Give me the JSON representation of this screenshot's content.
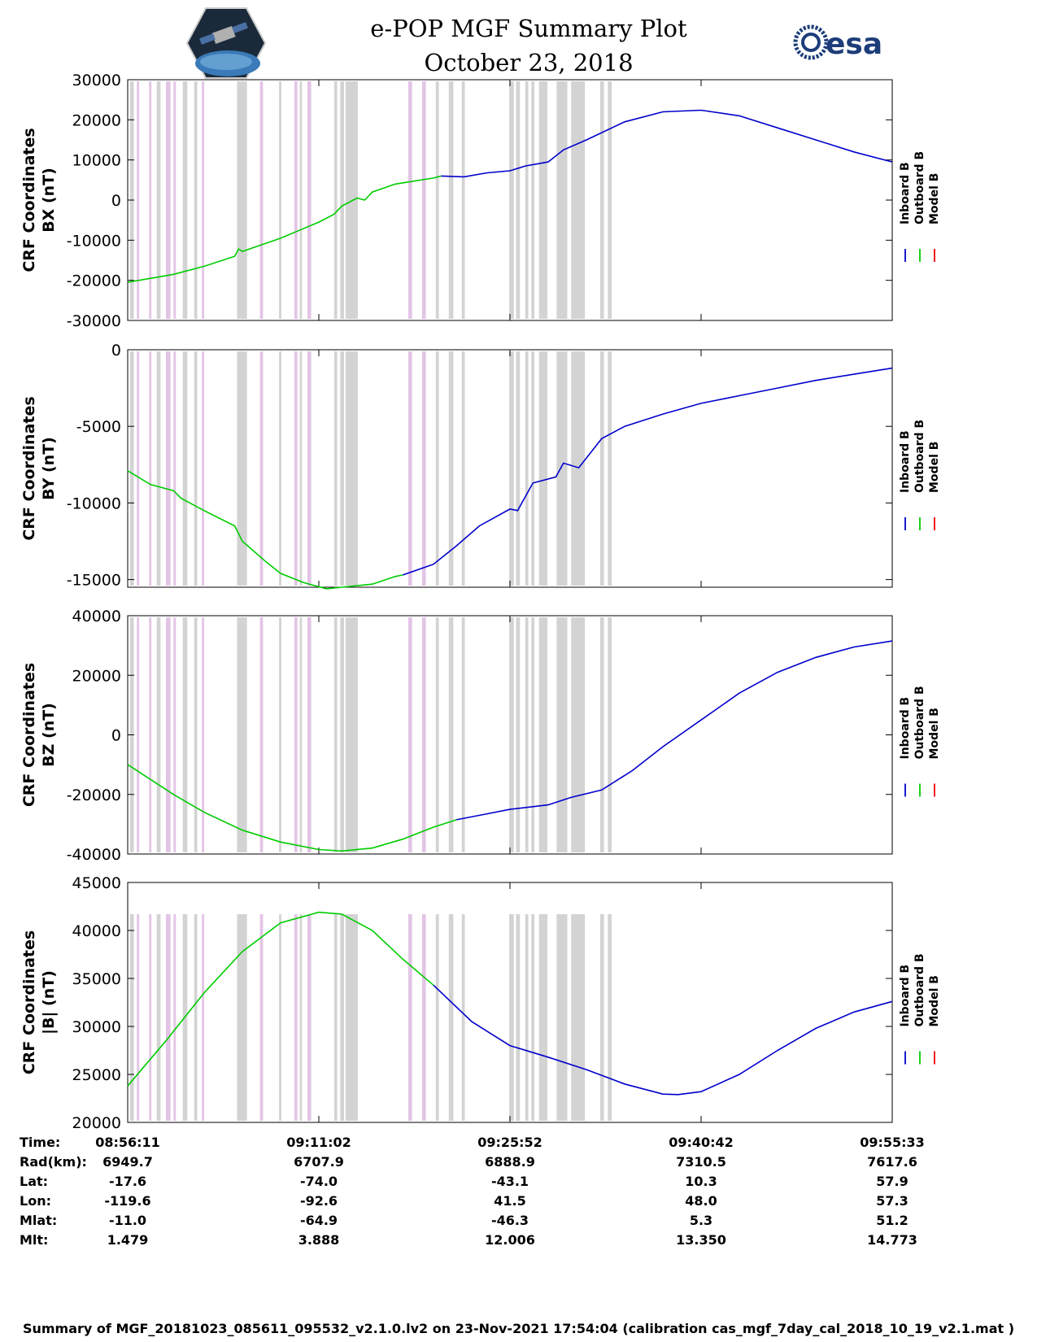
{
  "title": {
    "line1": "e-POP MGF Summary Plot",
    "line2": "October 23, 2018"
  },
  "logos": {
    "left": "cassiope-mission-logo",
    "right_text": "esa"
  },
  "colors": {
    "inboard": "#0000cc",
    "outboard": "#00cc00",
    "model": "#ee0000",
    "shade_gray": "#d3d3d3",
    "shade_pink": "#e3c4e6"
  },
  "legend": [
    "Inboard B",
    "Outboard B",
    "Model B"
  ],
  "chart_data": [
    {
      "type": "line",
      "ylabel_line1": "CRF Coordinates",
      "ylabel_line2": "BX (nT)",
      "ylim": [
        -30000,
        30000
      ],
      "yticks": [
        -30000,
        -20000,
        -10000,
        0,
        10000,
        20000,
        30000
      ],
      "xlim": [
        0,
        1
      ]
    },
    {
      "type": "line",
      "ylabel_line1": "CRF Coordinates",
      "ylabel_line2": "BY (nT)",
      "ylim": [
        -15500,
        0
      ],
      "yticks": [
        -15000,
        -10000,
        -5000,
        0
      ],
      "xlim": [
        0,
        1
      ]
    },
    {
      "type": "line",
      "ylabel_line1": "CRF Coordinates",
      "ylabel_line2": "BZ (nT)",
      "ylim": [
        -40000,
        40000
      ],
      "yticks": [
        -40000,
        -20000,
        0,
        20000,
        40000
      ],
      "xlim": [
        0,
        1
      ]
    },
    {
      "type": "line",
      "ylabel_line1": "CRF Coordinates",
      "ylabel_line2": "|B| (nT)",
      "ylim": [
        20000,
        45000
      ],
      "yticks": [
        20000,
        25000,
        30000,
        35000,
        40000,
        45000
      ],
      "xlim": [
        0,
        1
      ]
    }
  ],
  "series_points": {
    "bx": {
      "outboard": [
        [
          0,
          -20500
        ],
        [
          0.03,
          -19500
        ],
        [
          0.06,
          -18500
        ],
        [
          0.1,
          -16500
        ],
        [
          0.14,
          -14000
        ],
        [
          0.145,
          -12200
        ],
        [
          0.15,
          -12800
        ],
        [
          0.2,
          -9500
        ],
        [
          0.25,
          -5500
        ],
        [
          0.27,
          -3500
        ],
        [
          0.28,
          -1500
        ],
        [
          0.3,
          500
        ],
        [
          0.31,
          0
        ],
        [
          0.32,
          2000
        ],
        [
          0.35,
          4000
        ],
        [
          0.4,
          5500
        ],
        [
          0.41,
          6000
        ]
      ],
      "inboard": [
        [
          0.41,
          6000
        ],
        [
          0.44,
          5800
        ],
        [
          0.47,
          6800
        ],
        [
          0.5,
          7300
        ],
        [
          0.52,
          8500
        ],
        [
          0.55,
          9500
        ],
        [
          0.57,
          12500
        ],
        [
          0.6,
          15000
        ],
        [
          0.65,
          19500
        ],
        [
          0.7,
          22000
        ],
        [
          0.75,
          22400
        ],
        [
          0.8,
          21000
        ],
        [
          0.85,
          18000
        ],
        [
          0.9,
          15000
        ],
        [
          0.95,
          12000
        ],
        [
          1,
          9500
        ]
      ]
    },
    "by": {
      "outboard": [
        [
          0,
          -7900
        ],
        [
          0.03,
          -8800
        ],
        [
          0.06,
          -9200
        ],
        [
          0.07,
          -9700
        ],
        [
          0.1,
          -10500
        ],
        [
          0.14,
          -11500
        ],
        [
          0.15,
          -12500
        ],
        [
          0.18,
          -13800
        ],
        [
          0.2,
          -14600
        ],
        [
          0.23,
          -15200
        ],
        [
          0.26,
          -15600
        ],
        [
          0.28,
          -15500
        ],
        [
          0.3,
          -15400
        ],
        [
          0.32,
          -15300
        ],
        [
          0.35,
          -14800
        ],
        [
          0.36,
          -14700
        ]
      ],
      "inboard": [
        [
          0.36,
          -14700
        ],
        [
          0.4,
          -14000
        ],
        [
          0.43,
          -12800
        ],
        [
          0.46,
          -11500
        ],
        [
          0.5,
          -10400
        ],
        [
          0.51,
          -10500
        ],
        [
          0.53,
          -8700
        ],
        [
          0.56,
          -8300
        ],
        [
          0.57,
          -7400
        ],
        [
          0.59,
          -7700
        ],
        [
          0.62,
          -5800
        ],
        [
          0.65,
          -5000
        ],
        [
          0.7,
          -4200
        ],
        [
          0.75,
          -3500
        ],
        [
          0.8,
          -3000
        ],
        [
          0.85,
          -2500
        ],
        [
          0.9,
          -2000
        ],
        [
          0.95,
          -1600
        ],
        [
          1,
          -1200
        ]
      ]
    },
    "bz": {
      "outboard": [
        [
          0,
          -10000
        ],
        [
          0.03,
          -15000
        ],
        [
          0.06,
          -20000
        ],
        [
          0.1,
          -26000
        ],
        [
          0.15,
          -32000
        ],
        [
          0.2,
          -36000
        ],
        [
          0.25,
          -38500
        ],
        [
          0.28,
          -39000
        ],
        [
          0.32,
          -38000
        ],
        [
          0.36,
          -35000
        ],
        [
          0.4,
          -31000
        ],
        [
          0.43,
          -28500
        ]
      ],
      "inboard": [
        [
          0.43,
          -28500
        ],
        [
          0.47,
          -26500
        ],
        [
          0.5,
          -25000
        ],
        [
          0.55,
          -23500
        ],
        [
          0.58,
          -21000
        ],
        [
          0.62,
          -18500
        ],
        [
          0.66,
          -12000
        ],
        [
          0.7,
          -4000
        ],
        [
          0.75,
          5000
        ],
        [
          0.8,
          14000
        ],
        [
          0.85,
          21000
        ],
        [
          0.9,
          26000
        ],
        [
          0.95,
          29500
        ],
        [
          1,
          31500
        ]
      ]
    },
    "bmag": {
      "outboard": [
        [
          0,
          23800
        ],
        [
          0.05,
          28500
        ],
        [
          0.1,
          33500
        ],
        [
          0.15,
          37800
        ],
        [
          0.2,
          40800
        ],
        [
          0.25,
          41900
        ],
        [
          0.28,
          41700
        ],
        [
          0.32,
          40000
        ],
        [
          0.36,
          37000
        ],
        [
          0.4,
          34300
        ]
      ],
      "inboard": [
        [
          0.4,
          34300
        ],
        [
          0.45,
          30500
        ],
        [
          0.5,
          28000
        ],
        [
          0.55,
          26800
        ],
        [
          0.6,
          25500
        ],
        [
          0.65,
          24000
        ],
        [
          0.7,
          22950
        ],
        [
          0.72,
          22900
        ],
        [
          0.75,
          23200
        ],
        [
          0.8,
          25000
        ],
        [
          0.85,
          27500
        ],
        [
          0.9,
          29800
        ],
        [
          0.95,
          31500
        ],
        [
          1,
          32600
        ]
      ]
    }
  },
  "shading": {
    "gray": [
      [
        0.003,
        0.008
      ],
      [
        0.038,
        0.043
      ],
      [
        0.072,
        0.078
      ],
      [
        0.087,
        0.091
      ],
      [
        0.143,
        0.156
      ],
      [
        0.198,
        0.201
      ],
      [
        0.225,
        0.228
      ],
      [
        0.27,
        0.274
      ],
      [
        0.278,
        0.283
      ],
      [
        0.285,
        0.301
      ],
      [
        0.403,
        0.407
      ],
      [
        0.42,
        0.426
      ],
      [
        0.437,
        0.441
      ],
      [
        0.499,
        0.505
      ],
      [
        0.508,
        0.513
      ],
      [
        0.52,
        0.524
      ],
      [
        0.528,
        0.532
      ],
      [
        0.538,
        0.549
      ],
      [
        0.561,
        0.575
      ],
      [
        0.58,
        0.598
      ],
      [
        0.618,
        0.623
      ],
      [
        0.628,
        0.633
      ]
    ],
    "pink": [
      [
        0.012,
        0.015
      ],
      [
        0.028,
        0.031
      ],
      [
        0.05,
        0.056
      ],
      [
        0.06,
        0.063
      ],
      [
        0.097,
        0.1
      ],
      [
        0.173,
        0.177
      ],
      [
        0.218,
        0.222
      ],
      [
        0.235,
        0.24
      ],
      [
        0.367,
        0.372
      ],
      [
        0.385,
        0.39
      ]
    ]
  },
  "table": {
    "row_labels": [
      "Time:",
      "Rad(km):",
      "Lat:",
      "Lon:",
      "Mlat:",
      "Mlt:"
    ],
    "columns": [
      [
        "08:56:11",
        "6949.7",
        "-17.6",
        "-119.6",
        "-11.0",
        "1.479"
      ],
      [
        "09:11:02",
        "6707.9",
        "-74.0",
        "-92.6",
        "-64.9",
        "3.888"
      ],
      [
        "09:25:52",
        "6888.9",
        "-43.1",
        "41.5",
        "-46.3",
        "12.006"
      ],
      [
        "09:40:42",
        "7310.5",
        "10.3",
        "48.0",
        "5.3",
        "13.350"
      ],
      [
        "09:55:33",
        "7617.6",
        "57.9",
        "57.3",
        "51.2",
        "14.773"
      ]
    ]
  },
  "footer": "Summary of MGF_20181023_085611_095532_v2.1.0.lv2 on 23-Nov-2021 17:54:04 (calibration cas_mgf_7day_cal_2018_10_19_v2.1.mat )"
}
